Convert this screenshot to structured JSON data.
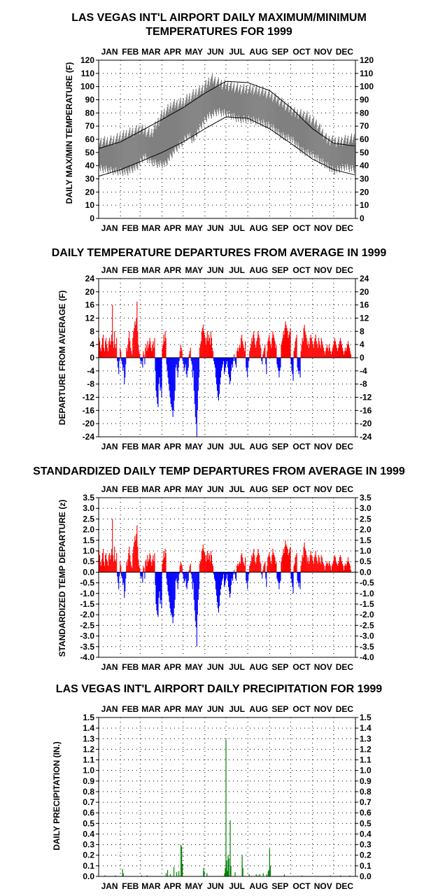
{
  "months": [
    "JAN",
    "FEB",
    "MAR",
    "APR",
    "MAY",
    "JUN",
    "JUL",
    "AUG",
    "SEP",
    "OCT",
    "NOV",
    "DEC"
  ],
  "colors": {
    "positive": "#ff0000",
    "negative": "#0000ff",
    "band": "#808080",
    "precip": "#008000"
  },
  "chart_data": [
    {
      "type": "area",
      "title_line1": "LAS VEGAS INT'L AIRPORT DAILY MAXIMUM/MINIMUM",
      "title_line2": "TEMPERATURES FOR 1999",
      "ylabel": "DAILY MAX/MIN TEMPERATURE (F)",
      "ylim": [
        0,
        120
      ],
      "yticks": [
        "0",
        "10",
        "20",
        "30",
        "40",
        "50",
        "60",
        "70",
        "80",
        "90",
        "100",
        "110",
        "120"
      ],
      "x": "day of year 1999",
      "series": [
        {
          "key": "normal_max",
          "points": [
            [
              1,
              53
            ],
            [
              32,
              58
            ],
            [
              60,
              66
            ],
            [
              91,
              75
            ],
            [
              121,
              84
            ],
            [
              152,
              95
            ],
            [
              182,
              104
            ],
            [
              213,
              103
            ],
            [
              244,
              97
            ],
            [
              274,
              84
            ],
            [
              305,
              68
            ],
            [
              335,
              57
            ],
            [
              365,
              55
            ]
          ]
        },
        {
          "key": "normal_min",
          "points": [
            [
              1,
              32
            ],
            [
              32,
              37
            ],
            [
              60,
              43
            ],
            [
              91,
              50
            ],
            [
              121,
              58
            ],
            [
              152,
              68
            ],
            [
              182,
              77
            ],
            [
              213,
              76
            ],
            [
              244,
              68
            ],
            [
              274,
              57
            ],
            [
              305,
              45
            ],
            [
              335,
              37
            ],
            [
              365,
              33
            ]
          ]
        },
        {
          "key": "observed_max_envelope",
          "points": [
            [
              1,
              62
            ],
            [
              20,
              63
            ],
            [
              40,
              68
            ],
            [
              60,
              72
            ],
            [
              75,
              68
            ],
            [
              90,
              82
            ],
            [
              105,
              90
            ],
            [
              120,
              92
            ],
            [
              135,
              98
            ],
            [
              150,
              103
            ],
            [
              160,
              110
            ],
            [
              175,
              106
            ],
            [
              190,
              104
            ],
            [
              205,
              102
            ],
            [
              220,
              102
            ],
            [
              235,
              100
            ],
            [
              250,
              96
            ],
            [
              265,
              90
            ],
            [
              280,
              84
            ],
            [
              295,
              82
            ],
            [
              310,
              76
            ],
            [
              325,
              64
            ],
            [
              340,
              62
            ],
            [
              365,
              65
            ]
          ]
        },
        {
          "key": "observed_min_envelope",
          "points": [
            [
              1,
              35
            ],
            [
              20,
              33
            ],
            [
              40,
              32
            ],
            [
              55,
              36
            ],
            [
              65,
              44
            ],
            [
              75,
              40
            ],
            [
              85,
              38
            ],
            [
              95,
              38
            ],
            [
              108,
              48
            ],
            [
              120,
              55
            ],
            [
              128,
              60
            ],
            [
              135,
              56
            ],
            [
              142,
              64
            ],
            [
              155,
              74
            ],
            [
              170,
              78
            ],
            [
              185,
              76
            ],
            [
              200,
              72
            ],
            [
              215,
              72
            ],
            [
              230,
              70
            ],
            [
              245,
              67
            ],
            [
              260,
              60
            ],
            [
              275,
              57
            ],
            [
              290,
              48
            ],
            [
              305,
              45
            ],
            [
              320,
              39
            ],
            [
              335,
              33
            ],
            [
              350,
              36
            ],
            [
              365,
              34
            ]
          ]
        }
      ]
    },
    {
      "type": "bar",
      "title": "DAILY TEMPERATURE DEPARTURES FROM AVERAGE IN 1999",
      "ylabel": "DEPARTURE FROM AVERAGE (F)",
      "ylim": [
        -24,
        24
      ],
      "yticks": [
        "-24",
        "-20",
        "-16",
        "-12",
        "-8",
        "-4",
        "0",
        "4",
        "8",
        "12",
        "16",
        "20",
        "24"
      ],
      "x": "day of year 1999",
      "values": [
        6,
        5,
        3,
        2,
        4,
        6,
        7,
        3,
        2,
        5,
        6,
        4,
        3,
        2,
        5,
        6,
        4,
        5,
        7,
        16,
        5,
        3,
        8,
        4,
        3,
        6,
        -1,
        -3,
        -5,
        -1,
        3,
        2,
        -1,
        -2,
        -4,
        -3,
        -8,
        -6,
        -2,
        3,
        2,
        4,
        6,
        8,
        5,
        3,
        2,
        1,
        6,
        8,
        9,
        11,
        10,
        12,
        17,
        8,
        4,
        2,
        1,
        -1,
        -2,
        -1,
        -3,
        2,
        1,
        -2,
        3,
        4,
        2,
        5,
        3,
        4,
        6,
        5,
        3,
        2,
        4,
        5,
        3,
        6,
        -4,
        -10,
        -12,
        -14,
        -15,
        -8,
        -6,
        -10,
        -9,
        -12,
        3,
        4,
        7,
        5,
        8,
        6,
        -2,
        -4,
        -6,
        -8,
        -10,
        -12,
        -14,
        -15,
        -16,
        -18,
        -16,
        -13,
        -10,
        -3,
        -2,
        -4,
        -6,
        -3,
        -1,
        2,
        4,
        3,
        2,
        -1,
        -2,
        -4,
        -3,
        -2,
        -5,
        -6,
        -4,
        -3,
        1,
        2,
        3,
        -1,
        -2,
        -6,
        -4,
        -10,
        -14,
        -18,
        -20,
        -24,
        -16,
        -10,
        -6,
        3,
        4,
        5,
        8,
        9,
        10,
        8,
        7,
        6,
        4,
        6,
        8,
        5,
        7,
        6,
        4,
        8,
        6,
        3,
        2,
        -1,
        -2,
        -3,
        -6,
        -8,
        -10,
        -12,
        -13,
        -11,
        -8,
        -6,
        -4,
        -3,
        -2,
        -1,
        -5,
        -4,
        -3,
        -2,
        -1,
        -3,
        -5,
        -6,
        -8,
        -7,
        -4,
        -2,
        -3,
        -1,
        1,
        -1,
        -2,
        -3,
        2,
        3,
        2,
        3,
        4,
        3,
        6,
        7,
        5,
        4,
        3,
        2,
        5,
        -3,
        -4,
        -6,
        -3,
        -1,
        2,
        3,
        4,
        6,
        5,
        7,
        8,
        6,
        4,
        3,
        5,
        6,
        8,
        7,
        6,
        4,
        3,
        -1,
        -2,
        1,
        2,
        3,
        4,
        -2,
        -5,
        2,
        5,
        6,
        7,
        5,
        4,
        3,
        6,
        8,
        7,
        6,
        5,
        3,
        4,
        -2,
        -3,
        -4,
        -6,
        -4,
        -3,
        4,
        5,
        6,
        8,
        7,
        9,
        11,
        10,
        9,
        8,
        6,
        7,
        8,
        9,
        -2,
        -4,
        -5,
        -7,
        2,
        3,
        5,
        6,
        7,
        -3,
        -4,
        -5,
        -4,
        -6,
        2,
        4,
        6,
        5,
        9,
        10,
        8,
        7,
        6,
        4,
        5,
        3,
        4,
        6,
        7,
        6,
        5,
        4,
        3,
        5,
        6,
        7,
        5,
        4,
        3,
        6,
        5,
        4,
        3,
        6,
        5,
        4,
        3,
        2,
        1,
        2,
        3,
        4,
        3,
        2,
        4,
        3,
        2,
        1,
        2,
        3,
        4,
        5,
        6,
        5,
        4,
        3,
        2,
        3,
        4,
        5,
        6,
        5,
        4,
        3,
        2,
        1,
        2,
        3,
        2,
        3,
        4,
        5,
        4,
        3,
        2,
        1
      ]
    },
    {
      "type": "bar",
      "title": "STANDARDIZED DAILY TEMP DEPARTURES FROM AVERAGE IN 1999",
      "ylabel": "STANDARDIZED TEMP DEPARTURE (z)",
      "ylim": [
        -4.0,
        3.5
      ],
      "yticks": [
        "-4.0",
        "-3.5",
        "-3.0",
        "-2.5",
        "-2.0",
        "-1.5",
        "-1.0",
        "-0.5",
        "0.0",
        "0.5",
        "1.0",
        "1.5",
        "2.0",
        "2.5",
        "3.0",
        "3.5"
      ],
      "x": "day of year 1999",
      "values": [
        1.0,
        0.8,
        0.5,
        0.3,
        0.6,
        0.9,
        1.1,
        0.5,
        0.3,
        0.8,
        0.9,
        0.6,
        0.5,
        0.3,
        0.8,
        0.9,
        0.6,
        0.8,
        1.1,
        2.5,
        0.8,
        0.5,
        1.2,
        0.6,
        0.5,
        0.9,
        -0.2,
        -0.5,
        -0.8,
        -0.2,
        0.5,
        0.3,
        -0.2,
        -0.3,
        -0.6,
        -0.5,
        -1.2,
        -0.9,
        -0.3,
        0.5,
        0.3,
        0.6,
        0.9,
        1.2,
        0.8,
        0.5,
        0.3,
        0.2,
        0.9,
        1.2,
        1.4,
        1.7,
        1.5,
        1.8,
        2.2,
        1.2,
        0.6,
        0.3,
        0.2,
        -0.2,
        -0.3,
        -0.2,
        -0.5,
        0.3,
        0.2,
        -0.3,
        0.5,
        0.6,
        0.3,
        0.8,
        0.5,
        0.6,
        0.9,
        0.8,
        0.5,
        0.3,
        0.6,
        0.8,
        0.5,
        0.9,
        -0.6,
        -1.5,
        -1.8,
        -2.0,
        -2.1,
        -1.2,
        -0.9,
        -1.5,
        -1.3,
        -1.7,
        0.4,
        0.6,
        1.0,
        0.7,
        1.1,
        0.9,
        -0.3,
        -0.6,
        -0.9,
        -1.1,
        -1.4,
        -1.7,
        -1.9,
        -2.0,
        -2.1,
        -2.4,
        -2.1,
        -1.7,
        -1.3,
        -0.4,
        -0.3,
        -0.5,
        -0.8,
        -0.4,
        -0.1,
        0.3,
        0.5,
        0.4,
        0.3,
        -0.1,
        -0.3,
        -0.5,
        -0.4,
        -0.3,
        -0.7,
        -0.8,
        -0.5,
        -0.4,
        0.1,
        0.3,
        0.4,
        -0.1,
        -0.3,
        -0.8,
        -0.5,
        -1.3,
        -1.8,
        -2.3,
        -2.6,
        -3.5,
        -2.0,
        -1.3,
        -0.8,
        0.4,
        0.5,
        0.6,
        1.0,
        1.1,
        1.3,
        1.0,
        0.9,
        0.8,
        0.5,
        0.8,
        1.0,
        0.6,
        0.9,
        0.8,
        0.5,
        1.0,
        0.8,
        0.4,
        0.3,
        -0.1,
        -0.3,
        -0.4,
        -0.8,
        -1.1,
        -1.4,
        -1.7,
        -1.9,
        -1.6,
        -1.1,
        -0.8,
        -0.6,
        -0.4,
        -0.3,
        -0.1,
        -0.7,
        -0.6,
        -0.4,
        -0.3,
        -0.1,
        -0.4,
        -0.7,
        -0.9,
        -1.2,
        -1.0,
        -0.6,
        -0.3,
        -0.4,
        -0.1,
        0.1,
        -0.1,
        -0.3,
        -0.4,
        0.3,
        0.4,
        0.3,
        0.4,
        0.5,
        0.4,
        0.8,
        0.9,
        0.7,
        0.5,
        0.4,
        0.3,
        0.7,
        -0.4,
        -0.5,
        -0.8,
        -0.4,
        -0.1,
        0.3,
        0.4,
        0.5,
        0.8,
        0.7,
        0.9,
        1.1,
        0.8,
        0.5,
        0.4,
        0.7,
        0.8,
        1.1,
        0.9,
        0.8,
        0.5,
        0.4,
        -0.1,
        -0.3,
        0.1,
        0.3,
        0.4,
        0.5,
        -0.3,
        -0.7,
        0.3,
        0.7,
        0.8,
        0.9,
        0.7,
        0.5,
        0.4,
        0.8,
        1.1,
        0.9,
        0.8,
        0.7,
        0.4,
        0.5,
        -0.3,
        -0.4,
        -0.5,
        -0.8,
        -0.5,
        -0.4,
        0.5,
        0.7,
        0.8,
        1.1,
        0.9,
        1.2,
        1.5,
        1.3,
        1.2,
        1.1,
        0.8,
        0.9,
        1.1,
        1.2,
        -0.3,
        -0.5,
        -0.7,
        -1.0,
        0.3,
        0.4,
        0.7,
        0.8,
        0.9,
        -0.4,
        -0.5,
        -0.7,
        -0.5,
        -0.8,
        0.3,
        0.5,
        0.8,
        0.7,
        1.2,
        1.4,
        1.1,
        1.0,
        0.8,
        0.5,
        0.7,
        0.4,
        0.5,
        0.8,
        1.0,
        0.8,
        0.7,
        0.5,
        0.4,
        0.7,
        0.8,
        1.0,
        0.7,
        0.5,
        0.4,
        0.8,
        0.7,
        0.5,
        0.4,
        0.8,
        0.7,
        0.5,
        0.4,
        0.3,
        0.1,
        0.3,
        0.4,
        0.5,
        0.4,
        0.3,
        0.5,
        0.4,
        0.3,
        0.1,
        0.3,
        0.4,
        0.5,
        0.7,
        0.8,
        0.7,
        0.5,
        0.4,
        0.3,
        0.4,
        0.5,
        0.7,
        0.8,
        0.7,
        0.5,
        0.4,
        0.3,
        0.1,
        0.3,
        0.4,
        0.3,
        0.4,
        0.5,
        0.7,
        0.5,
        0.4,
        0.3,
        0.1
      ]
    },
    {
      "type": "bar",
      "title": "LAS VEGAS INT'L AIRPORT DAILY PRECIPITATION FOR 1999",
      "ylabel": "DAILY PRECIPITATION (IN.)",
      "ylim": [
        0,
        1.5
      ],
      "yticks": [
        "0.0",
        "0.1",
        "0.2",
        "0.3",
        "0.4",
        "0.5",
        "0.6",
        "0.7",
        "0.8",
        "0.9",
        "1.0",
        "1.1",
        "1.2",
        "1.3",
        "1.4",
        "1.5"
      ],
      "x": "day of year 1999",
      "events": [
        [
          10,
          0.01
        ],
        [
          25,
          0.01
        ],
        [
          35,
          0.07
        ],
        [
          36,
          0.03
        ],
        [
          62,
          0.01
        ],
        [
          70,
          0.01
        ],
        [
          97,
          0.03
        ],
        [
          99,
          0.06
        ],
        [
          103,
          0.02
        ],
        [
          108,
          0.09
        ],
        [
          112,
          0.04
        ],
        [
          115,
          0.05
        ],
        [
          118,
          0.3
        ],
        [
          119,
          0.28
        ],
        [
          120,
          0.12
        ],
        [
          150,
          0.08
        ],
        [
          151,
          0.05
        ],
        [
          155,
          0.03
        ],
        [
          180,
          0.03
        ],
        [
          181,
          0.08
        ],
        [
          182,
          1.29
        ],
        [
          183,
          0.15
        ],
        [
          184,
          0.05
        ],
        [
          185,
          0.2
        ],
        [
          186,
          0.17
        ],
        [
          188,
          0.53
        ],
        [
          189,
          0.1
        ],
        [
          195,
          0.04
        ],
        [
          205,
          0.2
        ],
        [
          206,
          0.08
        ],
        [
          215,
          0.02
        ],
        [
          225,
          0.02
        ],
        [
          228,
          0.01
        ],
        [
          230,
          0.02
        ],
        [
          235,
          0.03
        ],
        [
          240,
          0.02
        ],
        [
          242,
          0.05
        ],
        [
          243,
          0.06
        ],
        [
          244,
          0.26
        ],
        [
          245,
          0.1
        ],
        [
          265,
          0.02
        ],
        [
          290,
          0.01
        ],
        [
          330,
          0.01
        ],
        [
          345,
          0.01
        ],
        [
          358,
          0.01
        ]
      ]
    }
  ]
}
